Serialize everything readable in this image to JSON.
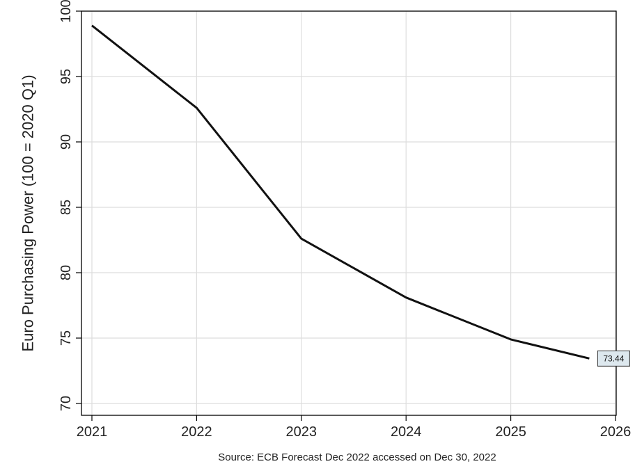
{
  "chart_data": {
    "type": "line",
    "ylabel": "Euro Purchasing Power (100 = 2020 Q1)",
    "xlabel": "",
    "source": "Source: ECB Forecast Dec 2022 accessed on Dec 30, 2022",
    "xlim": [
      2021,
      2026
    ],
    "ylim": [
      70,
      100
    ],
    "x_ticks": [
      2021,
      2022,
      2023,
      2024,
      2025,
      2026
    ],
    "y_ticks": [
      70,
      75,
      80,
      85,
      90,
      95,
      100
    ],
    "grid": true,
    "series": [
      {
        "x": [
          2021,
          2022,
          2023,
          2024,
          2025,
          2025.75
        ],
        "values": [
          98.9,
          92.6,
          82.6,
          78.1,
          74.9,
          73.44
        ]
      }
    ],
    "end_label": "73.44",
    "colors": {
      "line": "#111111",
      "grid": "#dddddd",
      "label_fill": "#dde8ee"
    }
  }
}
